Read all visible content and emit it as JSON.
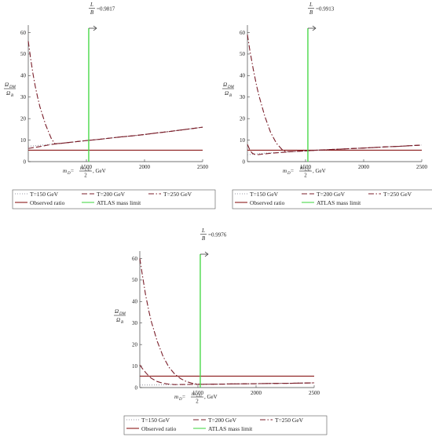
{
  "chart_data": [
    {
      "type": "line",
      "title_frac_num": "L",
      "title_frac_den": "B",
      "title_value": "=0.9817",
      "ylabel_num": "Ω",
      "ylabel_num_sub": "DM",
      "ylabel_den": "Ω",
      "ylabel_den_sub": "B",
      "xlabel_left": "m",
      "xlabel_left_sub": "D",
      "xlabel_eq": " = ",
      "xlabel_frac_num": "m",
      "xlabel_frac_num_sub": "UU",
      "xlabel_frac_den": "2",
      "xlabel_unit": ", GeV",
      "xlim": [
        1000,
        2500
      ],
      "ylim": [
        0,
        62
      ],
      "xticks": [
        "1500",
        "2000",
        "2500"
      ],
      "yticks": [
        "0",
        "10",
        "20",
        "30",
        "40",
        "50",
        "60"
      ],
      "series": [
        {
          "name": "T=150 GeV",
          "style": "dotted",
          "color": "#9a9aa6",
          "x": [
            1000,
            1010,
            1020,
            1040,
            1060,
            1080,
            1100,
            1150,
            1200,
            1300,
            1400,
            1500,
            1600,
            1700,
            1800,
            1900,
            2000,
            2100,
            2200,
            2300,
            2400,
            2500
          ],
          "y": [
            7.2,
            7.2,
            7.25,
            7.3,
            7.4,
            7.5,
            7.6,
            7.8,
            8.1,
            8.6,
            9.2,
            9.8,
            10.3,
            10.9,
            11.5,
            12.0,
            12.6,
            13.3,
            13.9,
            14.6,
            15.3,
            16.0
          ]
        },
        {
          "name": "T=200 GeV",
          "style": "dashed",
          "color": "#7a1e2a",
          "x": [
            1000,
            1010,
            1020,
            1040,
            1060,
            1080,
            1100,
            1150,
            1200,
            1300,
            1400,
            1500,
            1600,
            1700,
            1800,
            1900,
            2000,
            2100,
            2200,
            2300,
            2400,
            2500
          ],
          "y": [
            6.2,
            6.2,
            6.3,
            6.5,
            6.6,
            6.8,
            7.0,
            7.5,
            8.0,
            8.6,
            9.2,
            9.8,
            10.3,
            10.9,
            11.5,
            12.0,
            12.6,
            13.3,
            13.9,
            14.6,
            15.3,
            16.0
          ]
        },
        {
          "name": "T=250 GeV",
          "style": "dashdot",
          "color": "#7a1e2a",
          "x": [
            1000,
            1010,
            1020,
            1040,
            1060,
            1080,
            1100,
            1150,
            1200,
            1230,
            1300,
            1400,
            1500,
            1600,
            1700,
            1800,
            1900,
            2000,
            2100,
            2200,
            2300,
            2400,
            2500
          ],
          "y": [
            56,
            52,
            48,
            41,
            35,
            30,
            25.5,
            17,
            10.5,
            8.3,
            8.6,
            9.2,
            9.8,
            10.3,
            10.9,
            11.5,
            12.0,
            12.6,
            13.3,
            13.9,
            14.6,
            15.3,
            16.0
          ]
        }
      ],
      "observed_ratio": 5.3,
      "atlas_limit": 1520,
      "legend": [
        {
          "label": "T=150 GeV",
          "style": "dotted",
          "color": "#9a9aa6"
        },
        {
          "label": "T=200 GeV",
          "style": "dashed",
          "color": "#7a1e2a"
        },
        {
          "label": "T=250 GeV",
          "style": "dashdot",
          "color": "#7a1e2a"
        },
        {
          "label": "Observed ratio",
          "style": "solid",
          "color": "#8b1a1a"
        },
        {
          "label": "ATLAS mass limit",
          "style": "solid",
          "color": "#4ad94a"
        }
      ]
    },
    {
      "type": "line",
      "title_frac_num": "L",
      "title_frac_den": "B",
      "title_value": "=0.9913",
      "ylabel_num": "Ω",
      "ylabel_num_sub": "DM",
      "ylabel_den": "Ω",
      "ylabel_den_sub": "B",
      "xlabel_left": "m",
      "xlabel_left_sub": "D",
      "xlabel_eq": " = ",
      "xlabel_frac_num": "m",
      "xlabel_frac_num_sub": "UU",
      "xlabel_frac_den": "2",
      "xlabel_unit": ", GeV",
      "xlim": [
        1000,
        2500
      ],
      "ylim": [
        0,
        62
      ],
      "xticks": [
        "1500",
        "2000",
        "2500"
      ],
      "yticks": [
        "0",
        "10",
        "20",
        "30",
        "40",
        "50",
        "60"
      ],
      "series": [
        {
          "name": "T=150 GeV",
          "style": "dotted",
          "color": "#9a9aa6",
          "x": [
            1000,
            1020,
            1050,
            1080,
            1100,
            1150,
            1200,
            1300,
            1400,
            1500,
            1600,
            1700,
            1800,
            1900,
            2000,
            2100,
            2200,
            2300,
            2400,
            2500
          ],
          "y": [
            3.2,
            3.3,
            3.5,
            3.6,
            3.7,
            3.9,
            4.1,
            4.4,
            4.7,
            5.0,
            5.3,
            5.6,
            5.8,
            6.1,
            6.3,
            6.6,
            6.9,
            7.1,
            7.4,
            7.7
          ]
        },
        {
          "name": "T=200 GeV",
          "style": "dashed",
          "color": "#7a1e2a",
          "x": [
            1000,
            1010,
            1020,
            1040,
            1060,
            1080,
            1100,
            1150,
            1200,
            1300,
            1400,
            1500,
            1600,
            1700,
            1800,
            1900,
            2000,
            2100,
            2200,
            2300,
            2400,
            2500
          ],
          "y": [
            8.0,
            6.8,
            5.5,
            4.0,
            3.4,
            3.2,
            3.3,
            3.6,
            3.9,
            4.3,
            4.7,
            5.0,
            5.3,
            5.6,
            5.8,
            6.1,
            6.3,
            6.6,
            6.9,
            7.1,
            7.4,
            7.7
          ]
        },
        {
          "name": "T=250 GeV",
          "style": "dashdot",
          "color": "#7a1e2a",
          "x": [
            1000,
            1020,
            1050,
            1080,
            1100,
            1150,
            1200,
            1250,
            1300,
            1330,
            1400,
            1500,
            1600,
            1700,
            1800,
            1900,
            2000,
            2100,
            2200,
            2300,
            2400,
            2500
          ],
          "y": [
            59,
            52,
            43,
            35,
            30.5,
            21,
            13.5,
            8.5,
            5.5,
            4.6,
            4.7,
            5.0,
            5.3,
            5.6,
            5.8,
            6.1,
            6.3,
            6.6,
            6.9,
            7.1,
            7.4,
            7.7
          ]
        }
      ],
      "observed_ratio": 5.3,
      "atlas_limit": 1520,
      "legend": [
        {
          "label": "T=150 GeV",
          "style": "dotted",
          "color": "#9a9aa6"
        },
        {
          "label": "T=200 GeV",
          "style": "dashed",
          "color": "#7a1e2a"
        },
        {
          "label": "T=250 GeV",
          "style": "dashdot",
          "color": "#7a1e2a"
        },
        {
          "label": "Observed ratio",
          "style": "solid",
          "color": "#8b1a1a"
        },
        {
          "label": "ATLAS mass limit",
          "style": "solid",
          "color": "#4ad94a"
        }
      ]
    },
    {
      "type": "line",
      "title_frac_num": "L",
      "title_frac_den": "B",
      "title_value": "=0.9976",
      "ylabel_num": "Ω",
      "ylabel_num_sub": "DM",
      "ylabel_den": "Ω",
      "ylabel_den_sub": "B",
      "xlabel_left": "m",
      "xlabel_left_sub": "D",
      "xlabel_eq": " = ",
      "xlabel_frac_num": "m",
      "xlabel_frac_num_sub": "UU",
      "xlabel_frac_den": "2",
      "xlabel_unit": ", GeV",
      "xlim": [
        1000,
        2500
      ],
      "ylim": [
        0,
        62
      ],
      "xticks": [
        "1500",
        "2000",
        "2500"
      ],
      "yticks": [
        "0",
        "10",
        "20",
        "30",
        "40",
        "50",
        "60"
      ],
      "series": [
        {
          "name": "T=150 GeV",
          "style": "dotted",
          "color": "#9a9aa6",
          "x": [
            1000,
            1050,
            1100,
            1150,
            1200,
            1300,
            1400,
            1500,
            1600,
            1700,
            1800,
            1900,
            2000,
            2100,
            2200,
            2300,
            2400,
            2500
          ],
          "y": [
            1.2,
            1.2,
            1.2,
            1.25,
            1.3,
            1.35,
            1.4,
            1.5,
            1.55,
            1.6,
            1.7,
            1.75,
            1.8,
            1.9,
            1.95,
            2.0,
            2.1,
            2.2
          ]
        },
        {
          "name": "T=200 GeV",
          "style": "dashed",
          "color": "#7a1e2a",
          "x": [
            1000,
            1020,
            1050,
            1080,
            1100,
            1150,
            1200,
            1250,
            1300,
            1400,
            1500,
            1600,
            1700,
            1800,
            1900,
            2000,
            2100,
            2200,
            2300,
            2400,
            2500
          ],
          "y": [
            10.5,
            9.0,
            7.0,
            5.2,
            4.3,
            2.8,
            2.0,
            1.6,
            1.4,
            1.45,
            1.5,
            1.55,
            1.6,
            1.7,
            1.75,
            1.8,
            1.9,
            1.95,
            2.0,
            2.1,
            2.2
          ]
        },
        {
          "name": "T=250 GeV",
          "style": "dashdot",
          "color": "#7a1e2a",
          "x": [
            1000,
            1020,
            1050,
            1080,
            1100,
            1150,
            1200,
            1250,
            1300,
            1350,
            1400,
            1450,
            1500,
            1550,
            1600,
            1700,
            1800,
            1900,
            2000,
            2100,
            2200,
            2300,
            2400,
            2500
          ],
          "y": [
            60,
            53,
            43,
            35,
            30.5,
            21.5,
            14.5,
            9.5,
            6.3,
            4.2,
            2.8,
            2.0,
            1.6,
            1.5,
            1.55,
            1.6,
            1.7,
            1.75,
            1.8,
            1.9,
            1.95,
            2.0,
            2.1,
            2.2
          ]
        }
      ],
      "observed_ratio": 5.3,
      "atlas_limit": 1520,
      "legend": [
        {
          "label": "T=150 GeV",
          "style": "dotted",
          "color": "#9a9aa6"
        },
        {
          "label": "T=200 GeV",
          "style": "dashed",
          "color": "#7a1e2a"
        },
        {
          "label": "T=250 GeV",
          "style": "dashdot",
          "color": "#7a1e2a"
        },
        {
          "label": "Observed ratio",
          "style": "solid",
          "color": "#8b1a1a"
        },
        {
          "label": "ATLAS mass limit",
          "style": "solid",
          "color": "#4ad94a"
        }
      ]
    }
  ]
}
